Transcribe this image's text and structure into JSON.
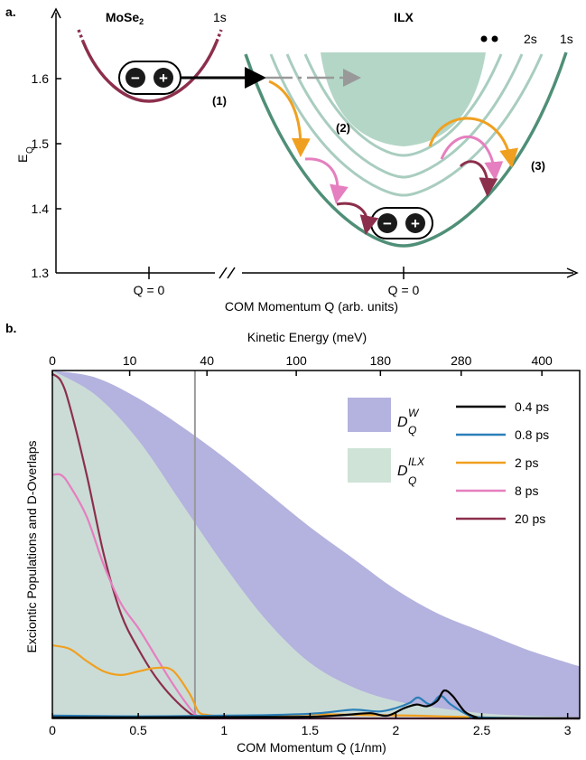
{
  "panel_a": {
    "label": "a.",
    "left_title": "MoSe",
    "left_title_sub": "2",
    "left_state": "1s",
    "right_title": "ILX",
    "right_state_2s": "2s",
    "right_state_1s": "1s",
    "ylabel": "E",
    "ylabel_sub": "Q",
    "yticks": [
      "1.6",
      "1.5",
      "1.4",
      "1.3"
    ],
    "xtick_left": "Q = 0",
    "xtick_right": "Q = 0",
    "xlabel": "COM Momentum Q (arb. units)",
    "step1": "(1)",
    "step2": "(2)",
    "step3": "(3)",
    "minus": "−",
    "plus": "+",
    "colors": {
      "mose2_band": "#8c2f4c",
      "ilx_band": "#4f8f77",
      "ilx_excited": "#a9cdbf",
      "continuum": "#b3d6c7",
      "arrow1": "#000000",
      "arrow_gray": "#999999",
      "orange": "#f0a020",
      "pink": "#e57fbf",
      "maroon": "#8c2f4c"
    }
  },
  "panel_b": {
    "label": "b.",
    "top_axis_label": "Kinetic Energy (meV)",
    "ylabel": "Exciontic Populations and D-Overlaps",
    "legend_DW_main": "D",
    "legend_DW_sup": "W",
    "legend_DW_sub": "Q",
    "legend_DILX_main": "D",
    "legend_DILX_sup": "ILX",
    "legend_DILX_sub": "Q"
  },
  "chart_data": {
    "type": "line",
    "xlabel": "COM Momentum Q (1/nm)",
    "top_xlabel": "Kinetic Energy (meV)",
    "ylabel": "Exciontic Populations and D-Overlaps",
    "xlim": [
      0,
      3.07
    ],
    "ylim": [
      0,
      1
    ],
    "xticks": [
      0,
      0.5,
      1,
      1.5,
      2,
      2.5,
      3
    ],
    "top_ticks": [
      {
        "label": "0",
        "q": 0
      },
      {
        "label": "10",
        "q": 0.45
      },
      {
        "label": "40",
        "q": 0.9
      },
      {
        "label": "100",
        "q": 1.42
      },
      {
        "label": "180",
        "q": 1.91
      },
      {
        "label": "280",
        "q": 2.38
      },
      {
        "label": "400",
        "q": 2.85
      }
    ],
    "vline_q": 0.83,
    "areas": [
      {
        "name": "D_Q^W",
        "color": "#b4b2de",
        "x": [
          0,
          0.25,
          0.5,
          0.75,
          1.0,
          1.25,
          1.5,
          1.75,
          2.0,
          2.25,
          2.5,
          2.75,
          3.0,
          3.07
        ],
        "values": [
          1.0,
          0.98,
          0.92,
          0.84,
          0.75,
          0.65,
          0.55,
          0.46,
          0.37,
          0.3,
          0.25,
          0.2,
          0.16,
          0.15
        ]
      },
      {
        "name": "D_Q^ILX",
        "color": "#cfe3d6",
        "x": [
          0,
          0.25,
          0.5,
          0.75,
          1.0,
          1.25,
          1.5,
          1.75,
          2.0,
          2.25,
          2.5,
          2.75,
          3.0
        ],
        "values": [
          1.0,
          0.93,
          0.8,
          0.62,
          0.44,
          0.28,
          0.16,
          0.09,
          0.05,
          0.03,
          0.015,
          0.008,
          0.004
        ]
      }
    ],
    "series": [
      {
        "name": "0.4 ps",
        "color": "#000000",
        "x": [
          0,
          0.5,
          1.0,
          1.5,
          1.7,
          1.85,
          1.95,
          2.05,
          2.12,
          2.18,
          2.24,
          2.28,
          2.33,
          2.4,
          2.47,
          2.5,
          3.07
        ],
        "values": [
          0.003,
          0.003,
          0.004,
          0.005,
          0.01,
          0.015,
          0.008,
          0.03,
          0.04,
          0.035,
          0.05,
          0.08,
          0.065,
          0.02,
          0.003,
          0.0,
          0.0
        ]
      },
      {
        "name": "0.8 ps",
        "color": "#2b7fb8",
        "x": [
          0,
          0.5,
          1.0,
          1.3,
          1.55,
          1.75,
          1.9,
          2.0,
          2.08,
          2.13,
          2.2,
          2.26,
          2.32,
          2.42,
          2.5,
          3.07
        ],
        "values": [
          0.008,
          0.006,
          0.008,
          0.01,
          0.015,
          0.025,
          0.02,
          0.03,
          0.045,
          0.06,
          0.04,
          0.065,
          0.04,
          0.01,
          0.003,
          0.0
        ]
      },
      {
        "name": "2 ps",
        "color": "#f0a020",
        "x": [
          0,
          0.1,
          0.2,
          0.3,
          0.4,
          0.5,
          0.6,
          0.7,
          0.8,
          0.85,
          0.9,
          1.0,
          1.2,
          1.5,
          1.8,
          2.1,
          2.5,
          3.07
        ],
        "values": [
          0.21,
          0.2,
          0.165,
          0.135,
          0.125,
          0.135,
          0.145,
          0.138,
          0.07,
          0.02,
          0.01,
          0.006,
          0.005,
          0.012,
          0.01,
          0.008,
          0.003,
          0.0
        ]
      },
      {
        "name": "8 ps",
        "color": "#e57fbf",
        "x": [
          0,
          0.05,
          0.1,
          0.2,
          0.3,
          0.4,
          0.5,
          0.6,
          0.7,
          0.8,
          0.85,
          0.9,
          1.5,
          3.07
        ],
        "values": [
          0.7,
          0.7,
          0.67,
          0.58,
          0.44,
          0.33,
          0.26,
          0.18,
          0.1,
          0.03,
          0.005,
          0.0,
          0.0,
          0.0
        ]
      },
      {
        "name": "20 ps",
        "color": "#8c2f4c",
        "x": [
          0,
          0.05,
          0.1,
          0.2,
          0.3,
          0.4,
          0.5,
          0.6,
          0.7,
          0.8,
          0.85,
          0.9,
          1.5,
          3.07
        ],
        "values": [
          0.99,
          0.97,
          0.9,
          0.7,
          0.47,
          0.3,
          0.2,
          0.12,
          0.06,
          0.015,
          0.003,
          0.0,
          0.0,
          0.0
        ]
      }
    ]
  }
}
